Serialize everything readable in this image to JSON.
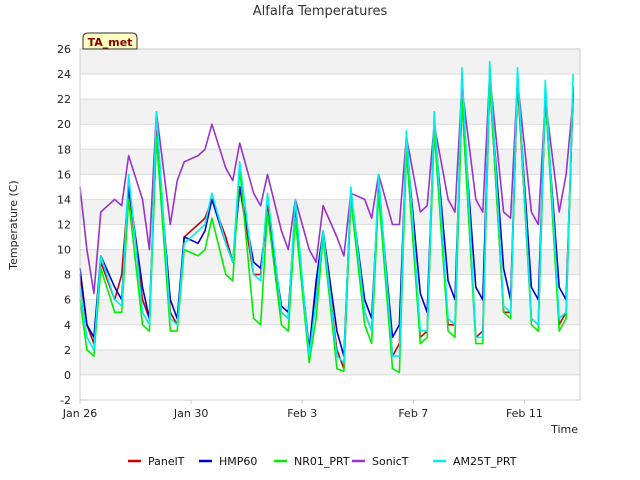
{
  "chart_data": {
    "type": "line",
    "title": "Alfalfa Temperatures",
    "xlabel": "Time",
    "ylabel": "Temperature (C)",
    "badge": "TA_met",
    "ylim": [
      -2,
      26
    ],
    "yticks": [
      -2,
      0,
      2,
      4,
      6,
      8,
      10,
      12,
      14,
      16,
      18,
      20,
      22,
      24,
      26
    ],
    "xlim": [
      "2023-01-26",
      "2023-02-13"
    ],
    "xticks": [
      {
        "label": "Jan 26",
        "date": "2023-01-26"
      },
      {
        "label": "Jan 30",
        "date": "2023-01-30"
      },
      {
        "label": "Feb 3",
        "date": "2023-02-03"
      },
      {
        "label": "Feb 7",
        "date": "2023-02-07"
      },
      {
        "label": "Feb 11",
        "date": "2023-02-11"
      }
    ],
    "grid": true,
    "legend_position": "bottom",
    "series": [
      {
        "name": "PanelT",
        "color": "#cc0000",
        "x": [
          "2023-01-26 00:00",
          "2023-01-26 06:00",
          "2023-01-26 12:00",
          "2023-01-26 18:00",
          "2023-01-27 06:00",
          "2023-01-27 12:00",
          "2023-01-27 18:00",
          "2023-01-28 06:00",
          "2023-01-28 12:00",
          "2023-01-28 18:00",
          "2023-01-29 06:00",
          "2023-01-29 12:00",
          "2023-01-29 18:00",
          "2023-01-30 06:00",
          "2023-01-30 12:00",
          "2023-01-30 18:00",
          "2023-01-31 06:00",
          "2023-01-31 12:00",
          "2023-01-31 18:00",
          "2023-02-01 06:00",
          "2023-02-01 12:00",
          "2023-02-01 18:00",
          "2023-02-02 06:00",
          "2023-02-02 12:00",
          "2023-02-02 18:00",
          "2023-02-03 06:00",
          "2023-02-03 12:00",
          "2023-02-03 18:00",
          "2023-02-04 06:00",
          "2023-02-04 12:00",
          "2023-02-04 18:00",
          "2023-02-05 06:00",
          "2023-02-05 12:00",
          "2023-02-05 18:00",
          "2023-02-06 06:00",
          "2023-02-06 12:00",
          "2023-02-06 18:00",
          "2023-02-07 06:00",
          "2023-02-07 12:00",
          "2023-02-07 18:00",
          "2023-02-08 06:00",
          "2023-02-08 12:00",
          "2023-02-08 18:00",
          "2023-02-09 06:00",
          "2023-02-09 12:00",
          "2023-02-09 18:00",
          "2023-02-10 06:00",
          "2023-02-10 12:00",
          "2023-02-10 18:00",
          "2023-02-11 06:00",
          "2023-02-11 12:00",
          "2023-02-11 18:00",
          "2023-02-12 06:00",
          "2023-02-12 12:00",
          "2023-02-12 18:00"
        ],
        "values": [
          8.0,
          4.0,
          2.5,
          9.0,
          6.0,
          8.0,
          15.0,
          6.0,
          4.5,
          19.5,
          5.0,
          4.0,
          11.0,
          12.0,
          12.5,
          14.0,
          11.0,
          9.0,
          15.0,
          8.0,
          8.0,
          13.5,
          5.0,
          4.5,
          13.5,
          1.5,
          6.5,
          11.0,
          2.0,
          0.5,
          14.0,
          5.0,
          3.5,
          15.0,
          1.5,
          2.5,
          18.0,
          3.0,
          3.5,
          20.0,
          4.0,
          4.0,
          22.0,
          3.0,
          3.5,
          23.5,
          5.0,
          5.0,
          23.5,
          4.5,
          4.0,
          22.5,
          4.0,
          5.0,
          23.0
        ]
      },
      {
        "name": "HMP60",
        "color": "#0000cc",
        "x": [
          "2023-01-26 00:00",
          "2023-01-26 06:00",
          "2023-01-26 12:00",
          "2023-01-26 18:00",
          "2023-01-27 06:00",
          "2023-01-27 12:00",
          "2023-01-27 18:00",
          "2023-01-28 06:00",
          "2023-01-28 12:00",
          "2023-01-28 18:00",
          "2023-01-29 06:00",
          "2023-01-29 12:00",
          "2023-01-29 18:00",
          "2023-01-30 06:00",
          "2023-01-30 12:00",
          "2023-01-30 18:00",
          "2023-01-31 06:00",
          "2023-01-31 12:00",
          "2023-01-31 18:00",
          "2023-02-01 06:00",
          "2023-02-01 12:00",
          "2023-02-01 18:00",
          "2023-02-02 06:00",
          "2023-02-02 12:00",
          "2023-02-02 18:00",
          "2023-02-03 06:00",
          "2023-02-03 12:00",
          "2023-02-03 18:00",
          "2023-02-04 06:00",
          "2023-02-04 12:00",
          "2023-02-04 18:00",
          "2023-02-05 06:00",
          "2023-02-05 12:00",
          "2023-02-05 18:00",
          "2023-02-06 06:00",
          "2023-02-06 12:00",
          "2023-02-06 18:00",
          "2023-02-07 06:00",
          "2023-02-07 12:00",
          "2023-02-07 18:00",
          "2023-02-08 06:00",
          "2023-02-08 12:00",
          "2023-02-08 18:00",
          "2023-02-09 06:00",
          "2023-02-09 12:00",
          "2023-02-09 18:00",
          "2023-02-10 06:00",
          "2023-02-10 12:00",
          "2023-02-10 18:00",
          "2023-02-11 06:00",
          "2023-02-11 12:00",
          "2023-02-11 18:00",
          "2023-02-12 06:00",
          "2023-02-12 12:00",
          "2023-02-12 18:00"
        ],
        "values": [
          8.5,
          4.0,
          3.0,
          9.5,
          7.0,
          6.0,
          15.0,
          7.0,
          4.5,
          19.0,
          6.0,
          4.5,
          11.0,
          10.5,
          11.5,
          14.0,
          10.5,
          9.0,
          15.0,
          9.0,
          8.5,
          13.0,
          5.5,
          5.0,
          13.0,
          2.0,
          7.5,
          11.5,
          3.5,
          1.5,
          14.5,
          6.0,
          4.5,
          15.0,
          3.0,
          4.0,
          18.5,
          6.5,
          5.0,
          20.0,
          7.5,
          6.0,
          22.0,
          7.0,
          6.0,
          23.5,
          8.5,
          6.0,
          23.5,
          7.0,
          6.0,
          22.0,
          7.0,
          6.0,
          22.5
        ]
      },
      {
        "name": "NR01_PRT",
        "color": "#00ee00",
        "x": [
          "2023-01-26 00:00",
          "2023-01-26 06:00",
          "2023-01-26 12:00",
          "2023-01-26 18:00",
          "2023-01-27 06:00",
          "2023-01-27 12:00",
          "2023-01-27 18:00",
          "2023-01-28 06:00",
          "2023-01-28 12:00",
          "2023-01-28 18:00",
          "2023-01-29 06:00",
          "2023-01-29 12:00",
          "2023-01-29 18:00",
          "2023-01-30 06:00",
          "2023-01-30 12:00",
          "2023-01-30 18:00",
          "2023-01-31 06:00",
          "2023-01-31 12:00",
          "2023-01-31 18:00",
          "2023-02-01 06:00",
          "2023-02-01 12:00",
          "2023-02-01 18:00",
          "2023-02-02 06:00",
          "2023-02-02 12:00",
          "2023-02-02 18:00",
          "2023-02-03 06:00",
          "2023-02-03 12:00",
          "2023-02-03 18:00",
          "2023-02-04 06:00",
          "2023-02-04 12:00",
          "2023-02-04 18:00",
          "2023-02-05 06:00",
          "2023-02-05 12:00",
          "2023-02-05 18:00",
          "2023-02-06 06:00",
          "2023-02-06 12:00",
          "2023-02-06 18:00",
          "2023-02-07 06:00",
          "2023-02-07 12:00",
          "2023-02-07 18:00",
          "2023-02-08 06:00",
          "2023-02-08 12:00",
          "2023-02-08 18:00",
          "2023-02-09 06:00",
          "2023-02-09 12:00",
          "2023-02-09 18:00",
          "2023-02-10 06:00",
          "2023-02-10 12:00",
          "2023-02-10 18:00",
          "2023-02-11 06:00",
          "2023-02-11 12:00",
          "2023-02-11 18:00",
          "2023-02-12 06:00",
          "2023-02-12 12:00",
          "2023-02-12 18:00"
        ],
        "values": [
          6.0,
          2.0,
          1.5,
          8.5,
          5.0,
          5.0,
          14.0,
          4.0,
          3.5,
          19.0,
          3.5,
          3.5,
          10.0,
          9.5,
          10.0,
          12.5,
          8.0,
          7.5,
          16.5,
          4.5,
          4.0,
          13.0,
          4.0,
          3.5,
          12.5,
          1.0,
          4.5,
          11.0,
          0.5,
          0.3,
          14.0,
          4.0,
          2.5,
          14.5,
          0.5,
          0.2,
          18.0,
          2.5,
          3.0,
          19.5,
          3.5,
          3.0,
          22.0,
          2.5,
          2.5,
          23.5,
          5.0,
          4.5,
          24.0,
          4.0,
          3.5,
          22.5,
          3.5,
          4.5,
          23.0
        ]
      },
      {
        "name": "SonicT",
        "color": "#9933cc",
        "x": [
          "2023-01-26 00:00",
          "2023-01-26 06:00",
          "2023-01-26 12:00",
          "2023-01-26 18:00",
          "2023-01-27 06:00",
          "2023-01-27 12:00",
          "2023-01-27 18:00",
          "2023-01-28 06:00",
          "2023-01-28 12:00",
          "2023-01-28 18:00",
          "2023-01-29 06:00",
          "2023-01-29 12:00",
          "2023-01-29 18:00",
          "2023-01-30 06:00",
          "2023-01-30 12:00",
          "2023-01-30 18:00",
          "2023-01-31 06:00",
          "2023-01-31 12:00",
          "2023-01-31 18:00",
          "2023-02-01 06:00",
          "2023-02-01 12:00",
          "2023-02-01 18:00",
          "2023-02-02 06:00",
          "2023-02-02 12:00",
          "2023-02-02 18:00",
          "2023-02-03 06:00",
          "2023-02-03 12:00",
          "2023-02-03 18:00",
          "2023-02-04 06:00",
          "2023-02-04 12:00",
          "2023-02-04 18:00",
          "2023-02-05 06:00",
          "2023-02-05 12:00",
          "2023-02-05 18:00",
          "2023-02-06 06:00",
          "2023-02-06 12:00",
          "2023-02-06 18:00",
          "2023-02-07 06:00",
          "2023-02-07 12:00",
          "2023-02-07 18:00",
          "2023-02-08 06:00",
          "2023-02-08 12:00",
          "2023-02-08 18:00",
          "2023-02-09 06:00",
          "2023-02-09 12:00",
          "2023-02-09 18:00",
          "2023-02-10 06:00",
          "2023-02-10 12:00",
          "2023-02-10 18:00",
          "2023-02-11 06:00",
          "2023-02-11 12:00",
          "2023-02-11 18:00",
          "2023-02-12 06:00",
          "2023-02-12 12:00",
          "2023-02-12 18:00"
        ],
        "values": [
          15.0,
          10.0,
          6.5,
          13.0,
          14.0,
          13.5,
          17.5,
          14.0,
          10.0,
          21.0,
          12.0,
          15.5,
          17.0,
          17.5,
          18.0,
          20.0,
          16.5,
          15.5,
          18.5,
          14.5,
          13.5,
          16.0,
          11.5,
          10.0,
          14.0,
          10.0,
          9.0,
          13.5,
          11.0,
          9.5,
          14.5,
          14.0,
          12.5,
          16.0,
          12.0,
          12.0,
          19.0,
          13.0,
          13.5,
          20.0,
          14.0,
          13.0,
          23.0,
          14.0,
          13.0,
          24.0,
          13.0,
          12.5,
          23.5,
          13.0,
          12.0,
          22.0,
          13.0,
          16.0,
          22.0
        ]
      },
      {
        "name": "AM25T_PRT",
        "color": "#00eeee",
        "x": [
          "2023-01-26 00:00",
          "2023-01-26 06:00",
          "2023-01-26 12:00",
          "2023-01-26 18:00",
          "2023-01-27 06:00",
          "2023-01-27 12:00",
          "2023-01-27 18:00",
          "2023-01-28 06:00",
          "2023-01-28 12:00",
          "2023-01-28 18:00",
          "2023-01-29 06:00",
          "2023-01-29 12:00",
          "2023-01-29 18:00",
          "2023-01-30 06:00",
          "2023-01-30 12:00",
          "2023-01-30 18:00",
          "2023-01-31 06:00",
          "2023-01-31 12:00",
          "2023-01-31 18:00",
          "2023-02-01 06:00",
          "2023-02-01 12:00",
          "2023-02-01 18:00",
          "2023-02-02 06:00",
          "2023-02-02 12:00",
          "2023-02-02 18:00",
          "2023-02-03 06:00",
          "2023-02-03 12:00",
          "2023-02-03 18:00",
          "2023-02-04 06:00",
          "2023-02-04 12:00",
          "2023-02-04 18:00",
          "2023-02-05 06:00",
          "2023-02-05 12:00",
          "2023-02-05 18:00",
          "2023-02-06 06:00",
          "2023-02-06 12:00",
          "2023-02-06 18:00",
          "2023-02-07 06:00",
          "2023-02-07 12:00",
          "2023-02-07 18:00",
          "2023-02-08 06:00",
          "2023-02-08 12:00",
          "2023-02-08 18:00",
          "2023-02-09 06:00",
          "2023-02-09 12:00",
          "2023-02-09 18:00",
          "2023-02-10 06:00",
          "2023-02-10 12:00",
          "2023-02-10 18:00",
          "2023-02-11 06:00",
          "2023-02-11 12:00",
          "2023-02-11 18:00",
          "2023-02-12 06:00",
          "2023-02-12 12:00",
          "2023-02-12 18:00"
        ],
        "values": [
          7.0,
          3.0,
          2.0,
          9.5,
          6.0,
          5.5,
          16.0,
          5.0,
          4.0,
          21.0,
          4.5,
          4.0,
          10.5,
          11.5,
          12.0,
          14.5,
          10.5,
          9.0,
          17.0,
          8.0,
          7.5,
          14.5,
          5.0,
          4.5,
          14.0,
          1.5,
          6.0,
          11.5,
          1.5,
          1.0,
          15.0,
          5.0,
          3.5,
          16.0,
          1.5,
          1.5,
          19.5,
          3.5,
          3.5,
          21.0,
          4.5,
          4.0,
          24.5,
          3.0,
          3.0,
          25.0,
          5.5,
          5.0,
          24.5,
          4.5,
          4.0,
          23.5,
          4.5,
          5.0,
          24.0
        ]
      }
    ]
  }
}
